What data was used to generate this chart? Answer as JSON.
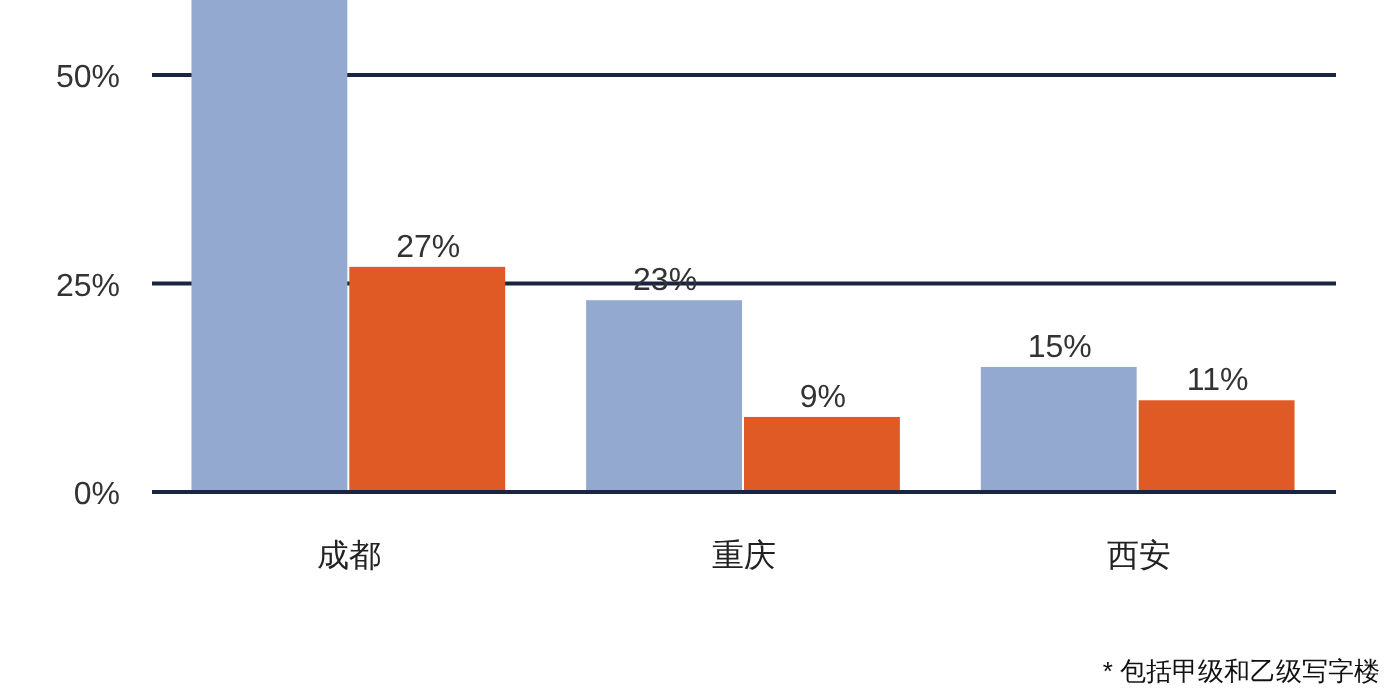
{
  "chart_data": {
    "type": "bar",
    "categories": [
      "成都",
      "重庆",
      "西安"
    ],
    "series": [
      {
        "color": "#94a9d0",
        "values": [
          59,
          23,
          15
        ],
        "value_labels": [
          null,
          "23%",
          "15%"
        ]
      },
      {
        "color": "#e05a26",
        "values": [
          27,
          9,
          11
        ],
        "value_labels": [
          "27%",
          "9%",
          "11%"
        ]
      }
    ],
    "ylim": [
      0,
      59
    ],
    "yticks": [
      {
        "value": 0,
        "label": "0%"
      },
      {
        "value": 25,
        "label": "25%"
      },
      {
        "value": 50,
        "label": "50%"
      }
    ],
    "grid": "y",
    "annotations": [
      "* 包括甲级和乙级写字楼"
    ]
  }
}
